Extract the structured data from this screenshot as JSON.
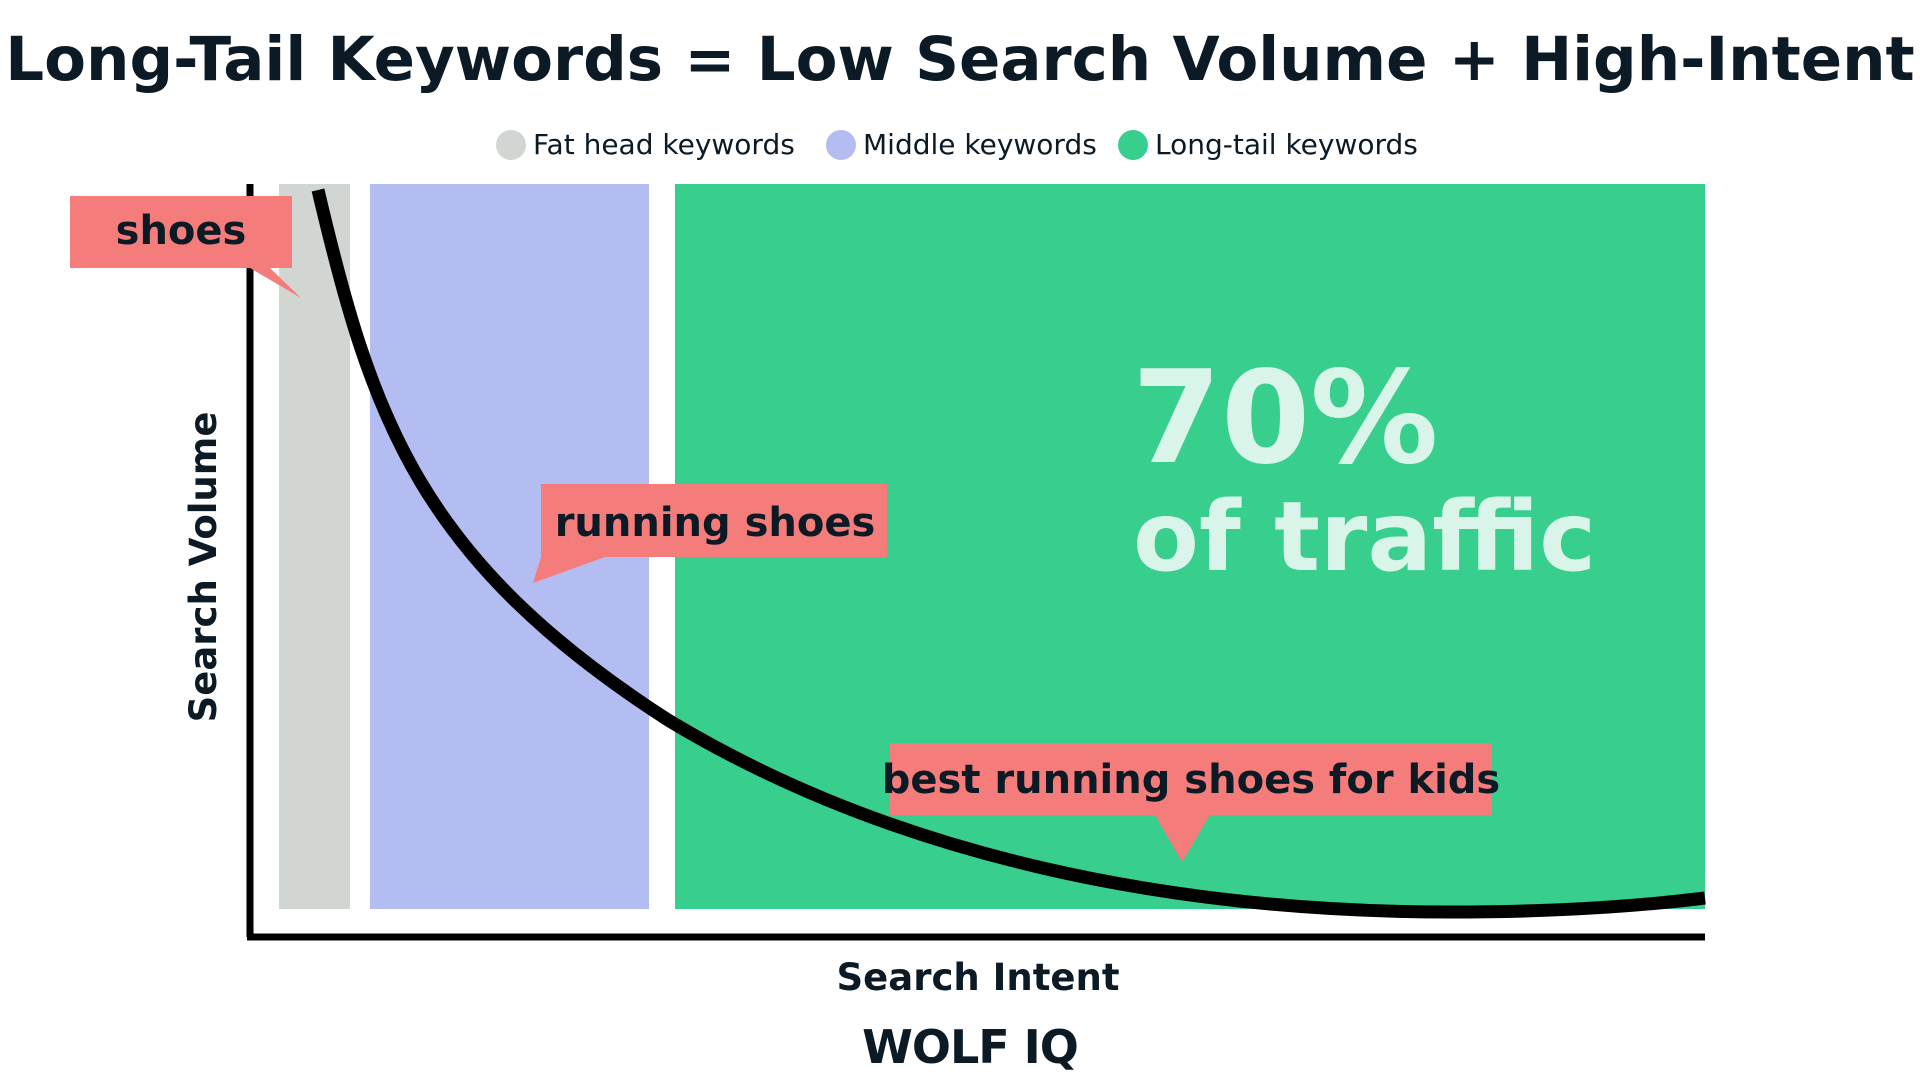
{
  "chart_data": {
    "type": "area",
    "title": "Long-Tail Keywords = Low Search Volume + High-Intent",
    "xlabel": "Search Intent",
    "ylabel": "Search Volume",
    "legend": {
      "placement": "top-center",
      "entries": [
        {
          "label": "Fat head keywords",
          "color": "#d1d6d3"
        },
        {
          "label": "Middle keywords",
          "color": "#b4bdf2"
        },
        {
          "label": "Long-tail keywords",
          "color": "#38ce8e"
        }
      ]
    },
    "annotations": [
      {
        "text": "shoes"
      },
      {
        "text": "running shoes"
      },
      {
        "text": "best running shoes for kids"
      }
    ],
    "highlight": {
      "value": "70%",
      "caption": "of traffic"
    },
    "grid": false
  },
  "brand": {
    "name": "WOLF IQ"
  },
  "colors": {
    "fat_head": "#d1d6d3",
    "middle": "#b4bdf2",
    "long_tail": "#38ce8e",
    "callout": "#f47c7a",
    "ink": "#0b1a24",
    "highlight_text": "#d9f5ea"
  }
}
